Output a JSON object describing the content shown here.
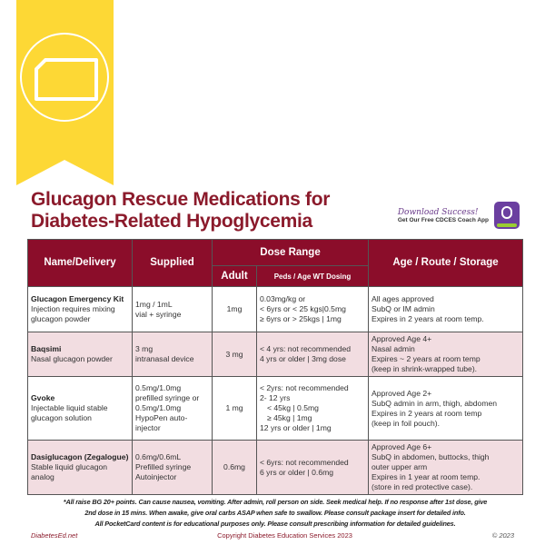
{
  "title": {
    "line1": "Glucagon Rescue Medications for",
    "line2": "Diabetes-Related Hypoglycemia"
  },
  "promo": {
    "headline": "Download Success!",
    "subline": "Get Our Free CDCES Coach App"
  },
  "colors": {
    "header": "#8b0d2a",
    "title": "#8b1a2b",
    "pink_row": "#f2dde1",
    "banner": "#fdd835"
  },
  "icons": {
    "banner": "document-icon",
    "app": "cdces-coach-app-icon"
  },
  "table": {
    "headers": {
      "name": "Name/Delivery",
      "supplied": "Supplied",
      "dose_range": "Dose Range",
      "adult": "Adult",
      "peds": "Peds / Age WT Dosing",
      "age": "Age / Route / Storage"
    },
    "rows": [
      {
        "name": "Glucagon Emergency Kit",
        "desc": "Injection requires mixing glucagon powder",
        "supplied": [
          "1mg / 1mL",
          "vial + syringe"
        ],
        "adult": "1mg",
        "peds": [
          "0.03mg/kg or",
          "< 6yrs or < 25 kgs|0.5mg",
          "≥ 6yrs or > 25kgs | 1mg"
        ],
        "age": [
          "All ages approved",
          "SubQ or IM admin",
          "Expires in 2 years at room temp."
        ]
      },
      {
        "name": "Baqsimi",
        "desc": "Nasal glucagon powder",
        "supplied": [
          "3 mg",
          "intranasal device"
        ],
        "adult": "3 mg",
        "peds": [
          "< 4 yrs: not recommended",
          "4 yrs or older | 3mg dose"
        ],
        "age": [
          "Approved Age 4+",
          "Nasal admin",
          "Expires ~ 2 years at room temp",
          "(keep in shrink-wrapped tube)."
        ]
      },
      {
        "name": "Gvoke",
        "desc": "Injectable liquid stable glucagon solution",
        "supplied": [
          "0.5mg/1.0mg",
          "prefilled syringe or",
          "0.5mg/1.0mg",
          "HypoPen auto-",
          "injector"
        ],
        "adult": "1 mg",
        "peds": [
          "< 2yrs: not recommended",
          "2- 12 yrs",
          "< 45kg | 0.5mg",
          "≥ 45kg | 1mg",
          "12 yrs or older | 1mg"
        ],
        "age": [
          "Approved Age 2+",
          "SubQ admin in arm, thigh, abdomen",
          "Expires in 2 years at room temp",
          "(keep in foil pouch)."
        ]
      },
      {
        "name": "Dasiglucagon (Zegalogue)",
        "desc": "Stable liquid glucagon analog",
        "supplied": [
          "0.6mg/0.6mL",
          "Prefilled syringe",
          "Autoinjector"
        ],
        "adult": "0.6mg",
        "peds": [
          "< 6yrs: not recommended",
          "6 yrs or older | 0.6mg"
        ],
        "age": [
          "Approved Age 6+",
          "SubQ in abdomen, buttocks, thigh",
          "outer upper arm",
          "Expires in 1 year at room temp.",
          "(store in red protective case)."
        ]
      }
    ]
  },
  "footnote": [
    "*All raise BG 20+ points. Can cause nausea, vomiting. After admin, roll person on side. Seek medical help. If no response after 1st dose, give",
    "2nd dose in 15 mins. When awake, give oral carbs ASAP when safe to swallow. Please consult package insert for detailed info.",
    "All PocketCard content is for educational purposes only. Please consult prescribing information for detailed guidelines."
  ],
  "bottom": {
    "site": "DiabetesEd.net",
    "copyright": "Copyright Diabetes Education Services 2023",
    "year": "© 2023"
  }
}
